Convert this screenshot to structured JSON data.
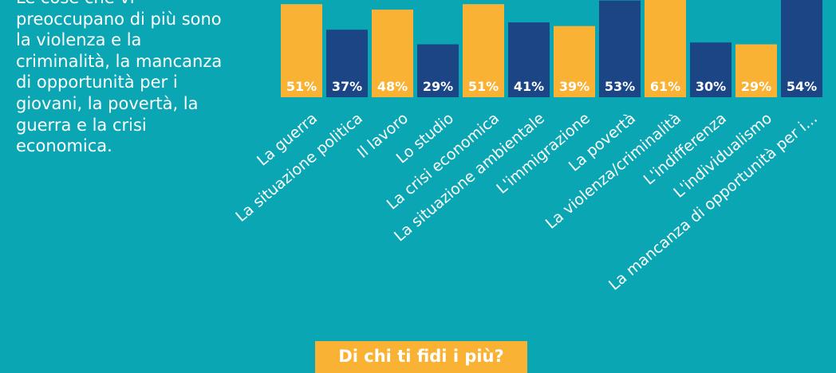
{
  "intro_lines": [
    "Le cose che vi",
    "preoccupano di più sono",
    "la violenza e la",
    "criminalità, la mancanza",
    "di opportunità per i",
    "giovani, la povertà, la",
    "guerra e la crisi",
    "economica."
  ],
  "chart_data": {
    "type": "bar",
    "categories": [
      "La guerra",
      "La situazione politica",
      "Il lavoro",
      "Lo studio",
      "La crisi economica",
      "La situazione ambientale",
      "L'immigrazione",
      "La povertà",
      "La violenza/criminalità",
      "L'indifferenza",
      "L'individualismo",
      "La mancanza di opportunità per i..."
    ],
    "values": [
      51,
      37,
      48,
      29,
      51,
      41,
      39,
      53,
      61,
      30,
      29,
      54
    ],
    "value_labels": [
      "51%",
      "37%",
      "48%",
      "29%",
      "51%",
      "41%",
      "39%",
      "53%",
      "61%",
      "30%",
      "29%",
      "54%"
    ],
    "colors": [
      "#f9b233",
      "#1c4585",
      "#f9b233",
      "#1c4585",
      "#f9b233",
      "#1c4585",
      "#f9b233",
      "#1c4585",
      "#f9b233",
      "#1c4585",
      "#f9b233",
      "#1c4585"
    ]
  },
  "button": "Di chi ti fidi i più?"
}
